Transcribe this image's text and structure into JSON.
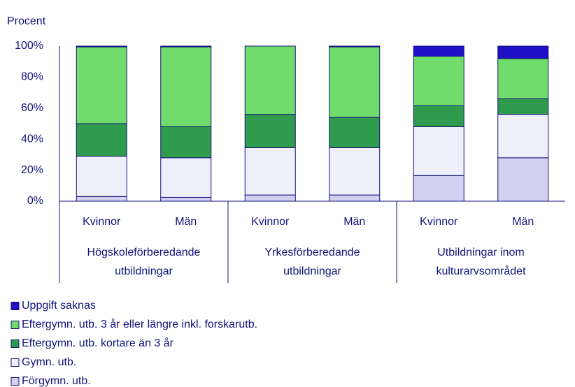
{
  "chart_data": {
    "type": "stacked_bar",
    "y_label": "Procent",
    "categories": [
      "Kvinnor",
      "Män",
      "Kvinnor",
      "Män",
      "Kvinnor",
      "Män"
    ],
    "groups": [
      {
        "label": [
          "Högskoleförberedande",
          "utbildningar"
        ]
      },
      {
        "label": [
          "Yrkesförberedande",
          "utbildningar"
        ]
      },
      {
        "label": [
          "Utbildningar inom",
          "kulturarvsområdet"
        ]
      }
    ],
    "series": [
      {
        "name": "Uppgift saknas",
        "color": "#1f10c8",
        "values": [
          0.5,
          0.5,
          0,
          0.5,
          6.5,
          8
        ]
      },
      {
        "name": "Eftergymn. utb. 3 år eller längre inkl. forskarutb.",
        "color": "#6fdc6c",
        "values": [
          49.5,
          51.5,
          44,
          45.5,
          32,
          26
        ]
      },
      {
        "name": "Eftergymn. utb. kortare än 3 år",
        "color": "#2e9c4c",
        "values": [
          21,
          20,
          21.5,
          19.5,
          13.5,
          10
        ]
      },
      {
        "name": "Gymn. utb.",
        "color": "#efeffc",
        "values": [
          26,
          25.5,
          30.5,
          30.5,
          31.5,
          28
        ]
      },
      {
        "name": "Förgymn. utb.",
        "color": "#d3cff1",
        "values": [
          3,
          2.5,
          4,
          4,
          16.5,
          28
        ]
      }
    ],
    "ylim": [
      0,
      100
    ],
    "yticks": [
      {
        "value": 0,
        "label": "0%"
      },
      {
        "value": 20,
        "label": "20%"
      },
      {
        "value": 40,
        "label": "40%"
      },
      {
        "value": 60,
        "label": "60%"
      },
      {
        "value": 80,
        "label": "80%"
      },
      {
        "value": 100,
        "label": "100%"
      }
    ]
  }
}
